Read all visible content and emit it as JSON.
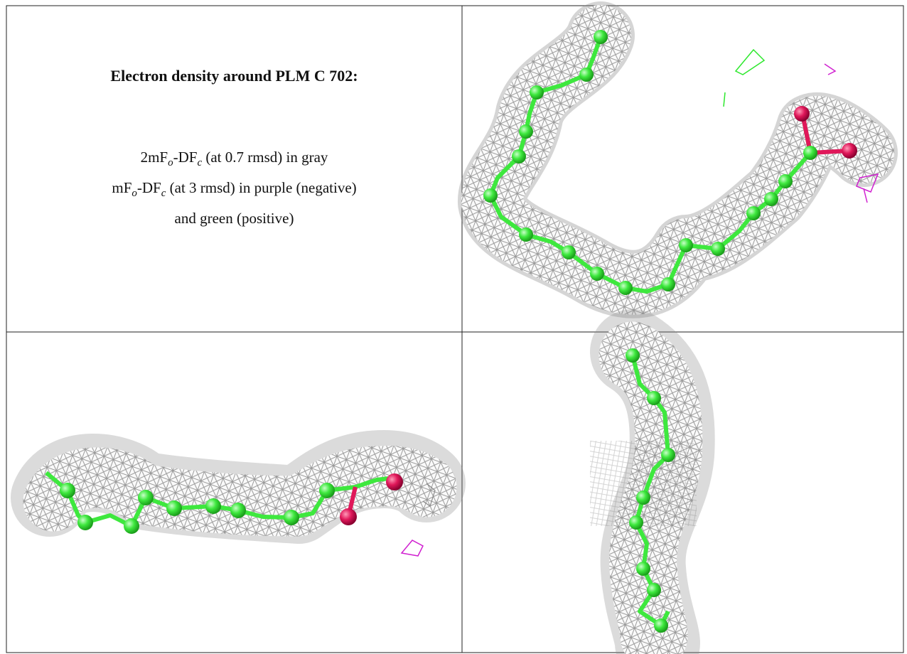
{
  "panel_text": {
    "title": "Electron density around PLM C 702:",
    "lines": [
      [
        "2mF",
        "o",
        "-DF",
        "c",
        " (at 0.7 rmsd) in gray"
      ],
      [
        "mF",
        "o",
        "-DF",
        "c",
        " (at 3 rmsd) in purple (negative)"
      ],
      [
        "and green (positive)"
      ]
    ]
  }
}
